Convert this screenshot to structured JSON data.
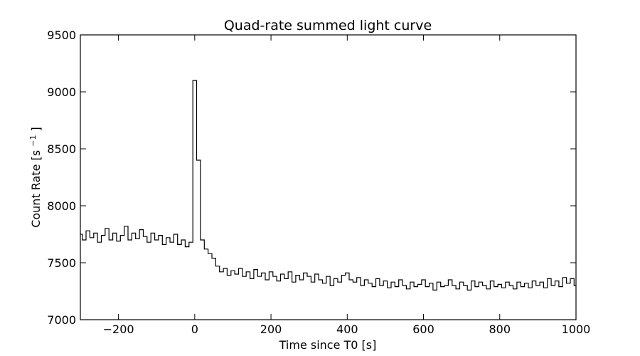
{
  "chart_data": {
    "type": "line",
    "title": "Quad-rate summed light curve",
    "xlabel": "Time since T0 [s]",
    "ylabel_main": "Count Rate [s",
    "ylabel_sup": "−1",
    "ylabel_end": "]",
    "xlim": [
      -300,
      1000
    ],
    "ylim": [
      7000,
      9500
    ],
    "xticks": [
      -200,
      0,
      200,
      400,
      600,
      800,
      1000
    ],
    "xtick_labels": [
      "−200",
      "0",
      "200",
      "400",
      "600",
      "800",
      "1000"
    ],
    "yticks": [
      7000,
      7500,
      8000,
      8500,
      9000,
      9500
    ],
    "ytick_labels": [
      "7000",
      "7500",
      "8000",
      "8500",
      "9000",
      "9500"
    ],
    "grid": false,
    "line_color": "#000000",
    "series": [
      {
        "step_s": 10,
        "x": [
          -300,
          -290,
          -280,
          -270,
          -260,
          -250,
          -240,
          -230,
          -220,
          -210,
          -200,
          -190,
          -180,
          -170,
          -160,
          -150,
          -140,
          -130,
          -120,
          -110,
          -100,
          -90,
          -80,
          -70,
          -60,
          -50,
          -40,
          -30,
          -20,
          -10,
          0,
          10,
          20,
          30,
          40,
          50,
          60,
          70,
          80,
          90,
          100,
          110,
          120,
          130,
          140,
          150,
          160,
          170,
          180,
          190,
          200,
          210,
          220,
          230,
          240,
          250,
          260,
          270,
          280,
          290,
          300,
          310,
          320,
          330,
          340,
          350,
          360,
          370,
          380,
          390,
          400,
          410,
          420,
          430,
          440,
          450,
          460,
          470,
          480,
          490,
          500,
          510,
          520,
          530,
          540,
          550,
          560,
          570,
          580,
          590,
          600,
          610,
          620,
          630,
          640,
          650,
          660,
          670,
          680,
          690,
          700,
          710,
          720,
          730,
          740,
          750,
          760,
          770,
          780,
          790,
          800,
          810,
          820,
          830,
          840,
          850,
          860,
          870,
          880,
          890,
          900,
          910,
          920,
          930,
          940,
          950,
          960,
          970,
          980,
          990,
          1000
        ],
        "y": [
          7750,
          7700,
          7780,
          7720,
          7760,
          7680,
          7740,
          7800,
          7700,
          7760,
          7690,
          7740,
          7820,
          7700,
          7760,
          7710,
          7790,
          7730,
          7680,
          7760,
          7700,
          7740,
          7660,
          7720,
          7680,
          7750,
          7660,
          7700,
          7640,
          7680,
          9100,
          8400,
          7700,
          7620,
          7580,
          7540,
          7470,
          7420,
          7450,
          7390,
          7430,
          7400,
          7450,
          7380,
          7420,
          7360,
          7440,
          7380,
          7410,
          7350,
          7420,
          7380,
          7340,
          7400,
          7360,
          7420,
          7330,
          7390,
          7350,
          7410,
          7380,
          7330,
          7400,
          7350,
          7320,
          7380,
          7300,
          7360,
          7330,
          7390,
          7410,
          7350,
          7330,
          7370,
          7300,
          7350,
          7320,
          7290,
          7360,
          7300,
          7340,
          7280,
          7330,
          7290,
          7350,
          7300,
          7270,
          7330,
          7290,
          7310,
          7350,
          7290,
          7320,
          7260,
          7330,
          7290,
          7300,
          7350,
          7300,
          7270,
          7330,
          7300,
          7260,
          7340,
          7290,
          7330,
          7300,
          7270,
          7340,
          7290,
          7310,
          7280,
          7330,
          7300,
          7270,
          7330,
          7290,
          7320,
          7280,
          7340,
          7300,
          7330,
          7280,
          7360,
          7300,
          7340,
          7290,
          7370,
          7320,
          7360,
          7300
        ]
      }
    ]
  }
}
